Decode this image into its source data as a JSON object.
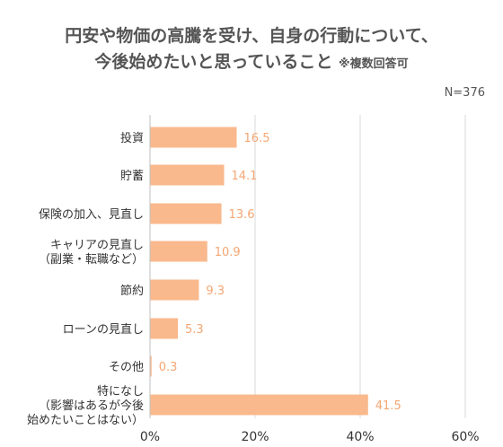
{
  "chart_data": {
    "type": "bar",
    "orientation": "horizontal",
    "title_line1": "円安や物価の高騰を受け、自身の行動について、",
    "title_line2": "今後始めたいと思っていること",
    "title_note": "※複数回答可",
    "sample": "N=376",
    "categories": [
      [
        "投資"
      ],
      [
        "貯蓄"
      ],
      [
        "保険の加入、見直し"
      ],
      [
        "キャリアの見直し",
        "（副業・転職など）"
      ],
      [
        "節約"
      ],
      [
        "ローンの見直し"
      ],
      [
        "その他"
      ],
      [
        "特になし",
        "（影響はあるが今後",
        "始めたいことはない）"
      ]
    ],
    "values": [
      16.5,
      14.1,
      13.6,
      10.9,
      9.3,
      5.3,
      0.3,
      41.5
    ],
    "value_labels": [
      "16.5",
      "14.1",
      "13.6",
      "10.9",
      "9.3",
      "5.3",
      "0.3",
      "41.5"
    ],
    "xlim": [
      0,
      60
    ],
    "xticks": [
      0,
      20,
      40,
      60
    ],
    "xtick_labels": [
      "0%",
      "20%",
      "40%",
      "60%"
    ],
    "grid": true,
    "bar_color": "#f9b98d",
    "label_color": "#f5a673",
    "grid_color": "#d9d9d9"
  }
}
